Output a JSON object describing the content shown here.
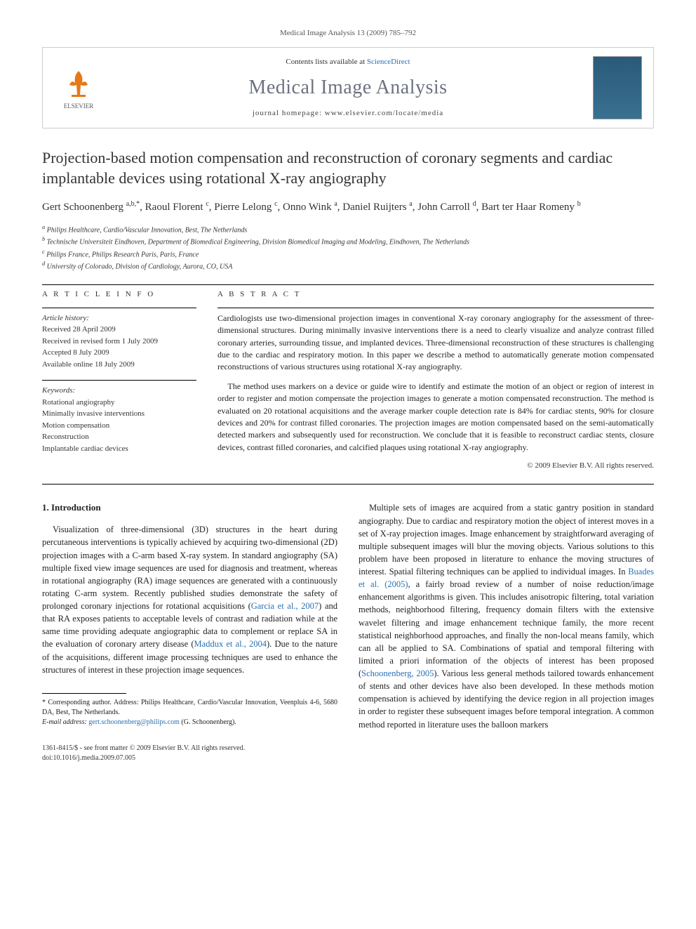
{
  "header": {
    "citation": "Medical Image Analysis 13 (2009) 785–792"
  },
  "banner": {
    "contents_prefix": "Contents lists available at ",
    "contents_link": "ScienceDirect",
    "journal_name": "Medical Image Analysis",
    "homepage_prefix": "journal homepage: ",
    "homepage_url": "www.elsevier.com/locate/media",
    "publisher_label": "ELSEVIER"
  },
  "article": {
    "title": "Projection-based motion compensation and reconstruction of coronary segments and cardiac implantable devices using rotational X-ray angiography",
    "authors_html": "Gert Schoonenberg <sup>a,b,*</sup>, Raoul Florent <sup>c</sup>, Pierre Lelong <sup>c</sup>, Onno Wink <sup>a</sup>, Daniel Ruijters <sup>a</sup>, John Carroll <sup>d</sup>, Bart ter Haar Romeny <sup>b</sup>",
    "affiliations": [
      "a Philips Healthcare, Cardio/Vascular Innovation, Best, The Netherlands",
      "b Technische Universiteit Eindhoven, Department of Biomedical Engineering, Division Biomedical Imaging and Modeling, Eindhoven, The Netherlands",
      "c Philips France, Philips Research Paris, Paris, France",
      "d University of Colorado, Division of Cardiology, Aurora, CO, USA"
    ]
  },
  "article_info": {
    "section_label": "A R T I C L E   I N F O",
    "history_label": "Article history:",
    "history": [
      "Received 28 April 2009",
      "Received in revised form 1 July 2009",
      "Accepted 8 July 2009",
      "Available online 18 July 2009"
    ],
    "keywords_label": "Keywords:",
    "keywords": [
      "Rotational angiography",
      "Minimally invasive interventions",
      "Motion compensation",
      "Reconstruction",
      "Implantable cardiac devices"
    ]
  },
  "abstract": {
    "section_label": "A B S T R A C T",
    "p1": "Cardiologists use two-dimensional projection images in conventional X-ray coronary angiography for the assessment of three-dimensional structures. During minimally invasive interventions there is a need to clearly visualize and analyze contrast filled coronary arteries, surrounding tissue, and implanted devices. Three-dimensional reconstruction of these structures is challenging due to the cardiac and respiratory motion. In this paper we describe a method to automatically generate motion compensated reconstructions of various structures using rotational X-ray angiography.",
    "p2": "The method uses markers on a device or guide wire to identify and estimate the motion of an object or region of interest in order to register and motion compensate the projection images to generate a motion compensated reconstruction. The method is evaluated on 20 rotational acquisitions and the average marker couple detection rate is 84% for cardiac stents, 90% for closure devices and 20% for contrast filled coronaries. The projection images are motion compensated based on the semi-automatically detected markers and subsequently used for reconstruction. We conclude that it is feasible to reconstruct cardiac stents, closure devices, contrast filled coronaries, and calcified plaques using rotational X-ray angiography.",
    "copyright": "© 2009 Elsevier B.V. All rights reserved."
  },
  "body": {
    "intro_heading": "1. Introduction",
    "col1_p1_a": "Visualization of three-dimensional (3D) structures in the heart during percutaneous interventions is typically achieved by acquiring two-dimensional (2D) projection images with a C-arm based X-ray system. In standard angiography (SA) multiple fixed view image sequences are used for diagnosis and treatment, whereas in rotational angiography (RA) image sequences are generated with a continuously rotating C-arm system. Recently published studies demonstrate the safety of prolonged coronary injections for rotational acquisitions (",
    "cite1": "Garcia et al., 2007",
    "col1_p1_b": ") and that RA exposes patients to acceptable levels of contrast and radiation while at the same time providing adequate angiographic data to complement or replace SA in the evaluation of coronary artery disease (",
    "cite2": "Maddux et al., 2004",
    "col1_p1_c": "). Due to the nature of the acquisitions, different image processing techniques are used to enhance the structures of interest in these projection image sequences.",
    "col2_p1_a": "Multiple sets of images are acquired from a static gantry position in standard angiography. Due to cardiac and respiratory motion the object of interest moves in a set of X-ray projection images. Image enhancement by straightforward averaging of multiple subsequent images will blur the moving objects. Various solutions to this problem have been proposed in literature to enhance the moving structures of interest. Spatial filtering techniques can be applied to individual images. In ",
    "cite3": "Buades et al. (2005)",
    "col2_p1_b": ", a fairly broad review of a number of noise reduction/image enhancement algorithms is given. This includes anisotropic filtering, total variation methods, neighborhood filtering, frequency domain filters with the extensive wavelet filtering and image enhancement technique family, the more recent statistical neighborhood approaches, and finally the non-local means family, which can all be applied to SA. Combinations of spatial and temporal filtering with limited a priori information of the objects of interest has been proposed (",
    "cite4": "Schoonenberg, 2005",
    "col2_p1_c": "). Various less general methods tailored towards enhancement of stents and other devices have also been developed. In these methods motion compensation is achieved by identifying the device region in all projection images in order to register these subsequent images before temporal integration. A common method reported in literature uses the balloon markers"
  },
  "footnotes": {
    "corr": "* Corresponding author. Address: Philips Healthcare, Cardio/Vascular Innovation, Veenpluis 4-6, 5680 DA, Best, The Netherlands.",
    "email_label": "E-mail address: ",
    "email": "gert.schoonenberg@philips.com",
    "email_suffix": " (G. Schoonenberg)."
  },
  "footer": {
    "line1": "1361-8415/$ - see front matter © 2009 Elsevier B.V. All rights reserved.",
    "line2": "doi:10.1016/j.media.2009.07.005"
  },
  "colors": {
    "link": "#2a6fb3",
    "journal_gray": "#6b7280",
    "border": "#cccccc"
  }
}
